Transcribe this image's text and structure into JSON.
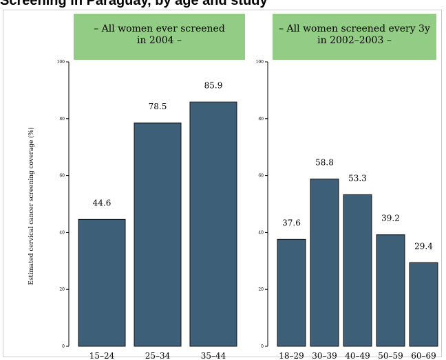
{
  "page": {
    "title": "Screening in Paraguay, by age and study"
  },
  "colors": {
    "bar": "#3d6078",
    "bar_stroke": "#111111",
    "panel_header": "#93cc84",
    "frame_border": "#cccccc"
  },
  "y_axis_label": "Estimated cervical cancer screening coverage (%)",
  "chart_data": [
    {
      "type": "bar",
      "title": "– All women ever screened\nin 2004 –",
      "xlabel": "",
      "ylabel": "Estimated cervical cancer screening coverage (%)",
      "categories": [
        "15–24",
        "25–34",
        "35–44"
      ],
      "values": [
        44.6,
        78.5,
        85.9
      ],
      "value_labels": [
        "44.6",
        "78.5",
        "85.9"
      ],
      "ylim": [
        0,
        100
      ],
      "yticks": [
        0,
        20,
        40,
        60,
        80,
        100
      ],
      "grid": false,
      "legend": "none"
    },
    {
      "type": "bar",
      "title": "– All women screened every 3y\nin 2002–2003 –",
      "xlabel": "",
      "ylabel": "",
      "categories": [
        "18–29",
        "30–39",
        "40–49",
        "50–59",
        "60–69"
      ],
      "values": [
        37.6,
        58.8,
        53.3,
        39.2,
        29.4
      ],
      "value_labels": [
        "37.6",
        "58.8",
        "53.3",
        "39.2",
        "29.4"
      ],
      "ylim": [
        0,
        100
      ],
      "yticks": [
        0,
        20,
        40,
        60,
        80,
        100
      ],
      "grid": false,
      "legend": "none"
    }
  ]
}
